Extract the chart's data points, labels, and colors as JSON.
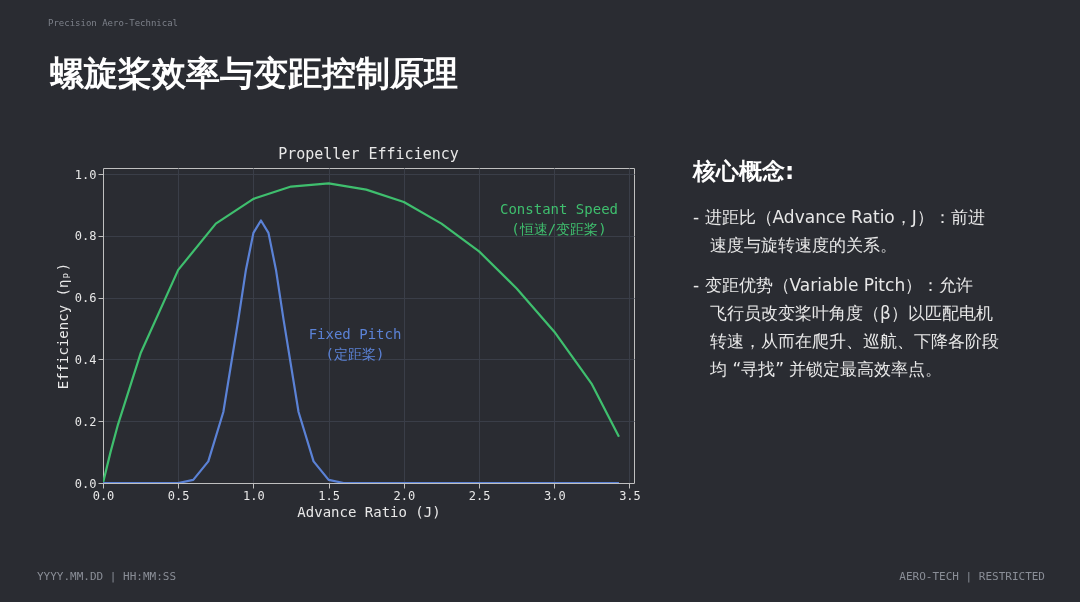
{
  "chart_data": {
    "type": "line",
    "title": "Propeller Efficiency",
    "xlabel": "Advance Ratio (J)",
    "ylabel": "Efficiency (ηₚ)",
    "xlim": [
      0,
      3.53
    ],
    "ylim": [
      0,
      1.02
    ],
    "xticks": [
      {
        "value": 0,
        "label": "0.0"
      },
      {
        "value": 0.5,
        "label": "0.5"
      },
      {
        "value": 1,
        "label": "1.0"
      },
      {
        "value": 1.5,
        "label": "1.5"
      },
      {
        "value": 2,
        "label": "2.0"
      },
      {
        "value": 2.5,
        "label": "2.5"
      },
      {
        "value": 3,
        "label": "3.0"
      },
      {
        "value": 3.5,
        "label": "3.5"
      }
    ],
    "yticks": [
      {
        "value": 0,
        "label": "0.0"
      },
      {
        "value": 0.2,
        "label": "0.2"
      },
      {
        "value": 0.4,
        "label": "0.4"
      },
      {
        "value": 0.6,
        "label": "0.6"
      },
      {
        "value": 0.8,
        "label": "0.8"
      },
      {
        "value": 1,
        "label": "1.0"
      }
    ],
    "grid": true,
    "legend": false,
    "marker": "none",
    "line_style": "solid",
    "series": [
      {
        "name": "Constant Speed\n(恒速/变距桨)",
        "color": "#3fbf6e",
        "x": [
          0,
          0.05,
          0.1,
          0.25,
          0.5,
          0.75,
          1.0,
          1.25,
          1.5,
          1.75,
          2.0,
          2.25,
          2.5,
          2.75,
          3.0,
          3.25,
          3.43
        ],
        "values": [
          0,
          0.1,
          0.19,
          0.42,
          0.69,
          0.84,
          0.92,
          0.96,
          0.97,
          0.95,
          0.91,
          0.84,
          0.75,
          0.63,
          0.49,
          0.32,
          0.15
        ]
      },
      {
        "name": "Fixed Pitch\n(定距桨)",
        "color": "#5b82d6",
        "x": [
          0,
          0.5,
          0.6,
          0.7,
          0.8,
          0.9,
          0.95,
          1.0,
          1.05,
          1.1,
          1.15,
          1.2,
          1.3,
          1.4,
          1.5,
          1.6,
          2.0,
          3.0,
          3.43
        ],
        "values": [
          0,
          0,
          0.01,
          0.07,
          0.23,
          0.53,
          0.69,
          0.81,
          0.85,
          0.81,
          0.69,
          0.53,
          0.23,
          0.07,
          0.01,
          0,
          0,
          0,
          0
        ]
      }
    ],
    "annotations": [
      "螺旋桨效率与变距控制原理",
      "Precision Aero-Technical",
      "核心概念:",
      "- 进距比（Advance Ratio，J）：前进",
      "速度与旋转速度的关系。",
      "- 变距优势（Variable Pitch）：允许",
      "飞行员改变桨叶角度（β）以匹配电机",
      "转速，从而在爬升、巡航、下降各阶段",
      "均 “寻找” 并锁定最高效率点。",
      "YYYY.MM.DD | HH:MM:SS",
      "AERO-TECH | RESTRICTED"
    ]
  }
}
